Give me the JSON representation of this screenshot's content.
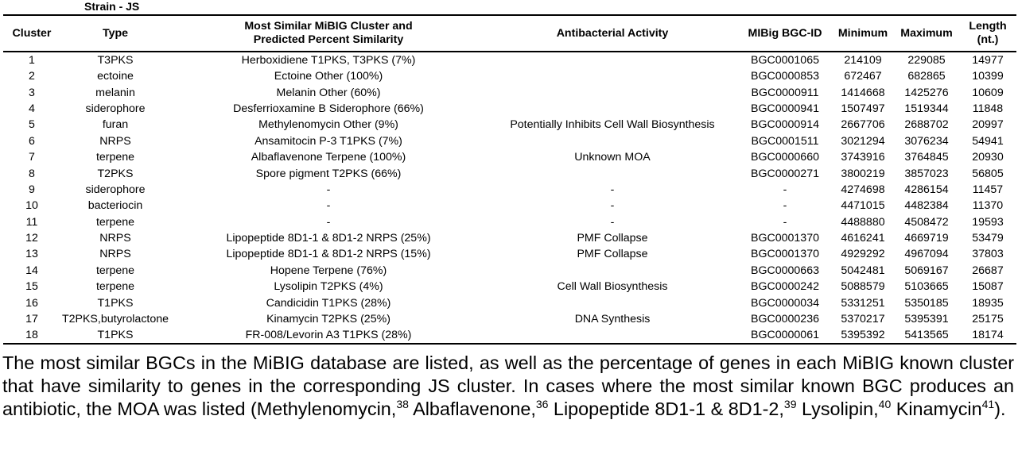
{
  "strain_label": "Strain - JS",
  "headers": {
    "cluster": "Cluster",
    "type": "Type",
    "most_similar_l1": "Most Similar MiBIG Cluster and",
    "most_similar_l2": "Predicted Percent Similarity",
    "activity": "Antibacterial Activity",
    "bgc_id": "MIBig BGC-ID",
    "minimum": "Minimum",
    "maximum": "Maximum",
    "length_l1": "Length",
    "length_l2": "(nt.)"
  },
  "rows": [
    {
      "cluster": "1",
      "type": "T3PKS",
      "similar": "Herboxidiene T1PKS, T3PKS (7%)",
      "activity": "",
      "bgc": "BGC0001065",
      "min": "214109",
      "max": "229085",
      "len": "14977"
    },
    {
      "cluster": "2",
      "type": "ectoine",
      "similar": "Ectoine Other (100%)",
      "activity": "",
      "bgc": "BGC0000853",
      "min": "672467",
      "max": "682865",
      "len": "10399"
    },
    {
      "cluster": "3",
      "type": "melanin",
      "similar": "Melanin Other (60%)",
      "activity": "",
      "bgc": "BGC0000911",
      "min": "1414668",
      "max": "1425276",
      "len": "10609"
    },
    {
      "cluster": "4",
      "type": "siderophore",
      "similar": "Desferrioxamine B Siderophore (66%)",
      "activity": "",
      "bgc": "BGC0000941",
      "min": "1507497",
      "max": "1519344",
      "len": "11848"
    },
    {
      "cluster": "5",
      "type": "furan",
      "similar": "Methylenomycin Other (9%)",
      "activity": "Potentially Inhibits Cell Wall Biosynthesis",
      "bgc": "BGC0000914",
      "min": "2667706",
      "max": "2688702",
      "len": "20997"
    },
    {
      "cluster": "6",
      "type": "NRPS",
      "similar": "Ansamitocin P-3 T1PKS (7%)",
      "activity": "",
      "bgc": "BGC0001511",
      "min": "3021294",
      "max": "3076234",
      "len": "54941"
    },
    {
      "cluster": "7",
      "type": "terpene",
      "similar": "Albaflavenone Terpene (100%)",
      "activity": "Unknown MOA",
      "bgc": "BGC0000660",
      "min": "3743916",
      "max": "3764845",
      "len": "20930"
    },
    {
      "cluster": "8",
      "type": "T2PKS",
      "similar": "Spore pigment T2PKS (66%)",
      "activity": "",
      "bgc": "BGC0000271",
      "min": "3800219",
      "max": "3857023",
      "len": "56805"
    },
    {
      "cluster": "9",
      "type": "siderophore",
      "similar": "-",
      "activity": "-",
      "bgc": "-",
      "min": "4274698",
      "max": "4286154",
      "len": "11457"
    },
    {
      "cluster": "10",
      "type": "bacteriocin",
      "similar": "-",
      "activity": "-",
      "bgc": "-",
      "min": "4471015",
      "max": "4482384",
      "len": "11370"
    },
    {
      "cluster": "11",
      "type": "terpene",
      "similar": "-",
      "activity": "-",
      "bgc": "-",
      "min": "4488880",
      "max": "4508472",
      "len": "19593"
    },
    {
      "cluster": "12",
      "type": "NRPS",
      "similar": "Lipopeptide 8D1-1 & 8D1-2 NRPS (25%)",
      "activity": "PMF Collapse",
      "bgc": "BGC0001370",
      "min": "4616241",
      "max": "4669719",
      "len": "53479"
    },
    {
      "cluster": "13",
      "type": "NRPS",
      "similar": "Lipopeptide 8D1-1 & 8D1-2 NRPS (15%)",
      "activity": "PMF Collapse",
      "bgc": "BGC0001370",
      "min": "4929292",
      "max": "4967094",
      "len": "37803"
    },
    {
      "cluster": "14",
      "type": "terpene",
      "similar": "Hopene Terpene (76%)",
      "activity": "",
      "bgc": "BGC0000663",
      "min": "5042481",
      "max": "5069167",
      "len": "26687"
    },
    {
      "cluster": "15",
      "type": "terpene",
      "similar": "Lysolipin T2PKS (4%)",
      "activity": "Cell Wall Biosynthesis",
      "bgc": "BGC0000242",
      "min": "5088579",
      "max": "5103665",
      "len": "15087"
    },
    {
      "cluster": "16",
      "type": "T1PKS",
      "similar": "Candicidin T1PKS (28%)",
      "activity": "",
      "bgc": "BGC0000034",
      "min": "5331251",
      "max": "5350185",
      "len": "18935"
    },
    {
      "cluster": "17",
      "type": "T2PKS,butyrolactone",
      "similar": "Kinamycin T2PKS (25%)",
      "activity": "DNA Synthesis",
      "bgc": "BGC0000236",
      "min": "5370217",
      "max": "5395391",
      "len": "25175"
    },
    {
      "cluster": "18",
      "type": "T1PKS",
      "similar": "FR-008/Levorin A3 T1PKS (28%)",
      "activity": "",
      "bgc": "BGC0000061",
      "min": "5395392",
      "max": "5413565",
      "len": "18174"
    }
  ],
  "caption": {
    "text": "The most similar BGCs in the MiBIG database are listed, as well as the percentage of genes in each MiBIG known cluster that have similarity to genes in the corresponding JS cluster.  In cases where the most similar known BGC produces an antibiotic, the MOA was listed (Methylenomycin,",
    "ref1": "38",
    "t2": " Albaflavenone,",
    "ref2": "36",
    "t3": " Lipopeptide 8D1-1 & 8D1-2,",
    "ref3": "39",
    "t4": " Lysolipin,",
    "ref4": "40",
    "t5": " Kinamycin",
    "ref5": "41",
    "t6": ")."
  }
}
